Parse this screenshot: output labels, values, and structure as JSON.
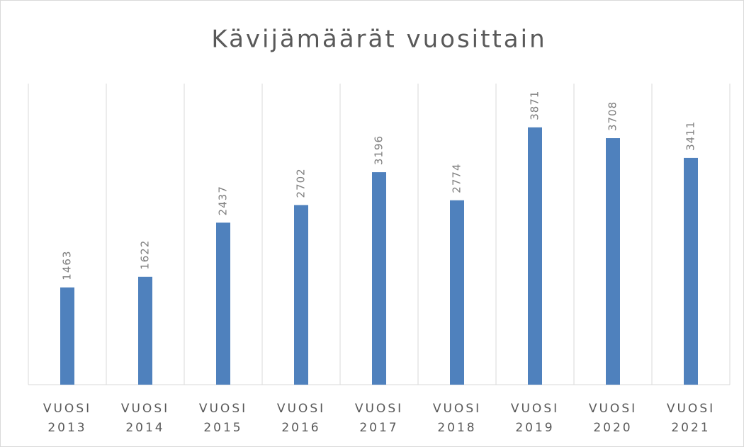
{
  "chart_data": {
    "type": "bar",
    "title": "Kävijämäärät vuosittain",
    "categories": [
      "VUOSI 2013",
      "VUOSI 2014",
      "VUOSI 2015",
      "VUOSI 2016",
      "VUOSI 2017",
      "VUOSI 2018",
      "VUOSI 2019",
      "VUOSI 2020",
      "VUOSI 2021"
    ],
    "values": [
      1463,
      1622,
      2437,
      2702,
      3196,
      2774,
      3871,
      3708,
      3411
    ],
    "color": "#4f81bd",
    "grid": true
  }
}
